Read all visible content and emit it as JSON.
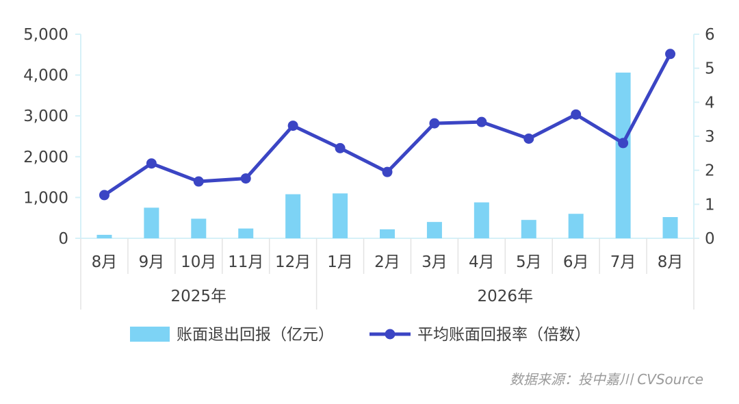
{
  "chart_data": {
    "type": "bar",
    "categories": [
      "8月",
      "9月",
      "10月",
      "11月",
      "12月",
      "1月",
      "2月",
      "3月",
      "4月",
      "5月",
      "6月",
      "7月",
      "8月"
    ],
    "category_groups": [
      {
        "label": "2025年",
        "count": 5
      },
      {
        "label": "2026年",
        "count": 8
      }
    ],
    "series": [
      {
        "name": "账面退出回报（亿元）",
        "type": "bar",
        "axis": "left",
        "color": "#7dd3f5",
        "values": [
          85,
          750,
          480,
          240,
          1080,
          1100,
          220,
          400,
          880,
          450,
          600,
          4060,
          520
        ]
      },
      {
        "name": "平均账面回报率（倍数）",
        "type": "line",
        "axis": "right",
        "color": "#3b45c4",
        "values": [
          1.27,
          2.2,
          1.67,
          1.76,
          3.31,
          2.65,
          1.95,
          3.38,
          3.42,
          2.93,
          3.64,
          2.8,
          5.42
        ]
      }
    ],
    "y_left": {
      "min": 0,
      "max": 5000,
      "ticks": [
        0,
        1000,
        2000,
        3000,
        4000,
        5000
      ],
      "tick_labels": [
        "0",
        "1,000",
        "2,000",
        "3,000",
        "4,000",
        "5,000"
      ]
    },
    "y_right": {
      "min": 0,
      "max": 6,
      "ticks": [
        0,
        1,
        2,
        3,
        4,
        5,
        6
      ],
      "tick_labels": [
        "0",
        "1",
        "2",
        "3",
        "4",
        "5",
        "6"
      ]
    },
    "grid": false,
    "legend": "bottom"
  },
  "source_text": "数据来源：投中嘉川 CVSource"
}
